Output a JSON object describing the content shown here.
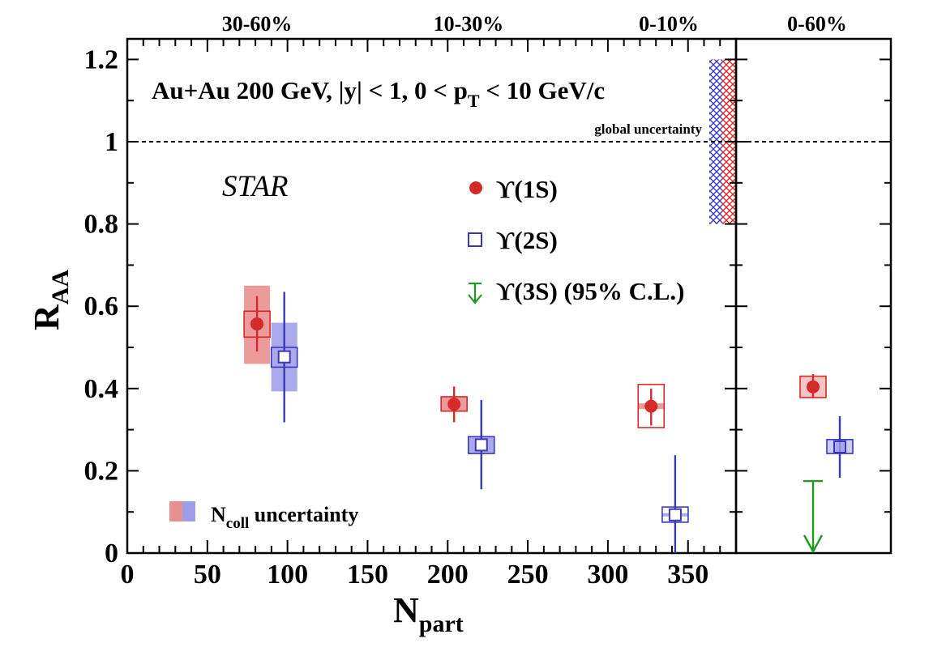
{
  "chart_data": {
    "type": "scatter",
    "title": "Au+Au 200 GeV, |y| < 1, 0 < p_T < 10 GeV/c",
    "title_parts": {
      "main": "Au+Au 200 GeV, |y| < 1, 0 < p",
      "sub": "T",
      "tail": " < 10 GeV/c"
    },
    "experiment_label": "STAR",
    "xlabel": {
      "main": "N",
      "sub": "part"
    },
    "ylabel": {
      "main": "R",
      "sub": "AA"
    },
    "xlim": [
      0,
      380
    ],
    "ylim": [
      0,
      1.25
    ],
    "x_ticks": [
      "0",
      "50",
      "100",
      "150",
      "200",
      "250",
      "300",
      "350"
    ],
    "y_ticks": [
      "0",
      "0.2",
      "0.4",
      "0.6",
      "0.8",
      "1",
      "1.2"
    ],
    "centrality_labels": [
      {
        "label": "30-60%",
        "x": 81
      },
      {
        "label": "10-30%",
        "x": 213
      },
      {
        "label": "0-10%",
        "x": 338
      }
    ],
    "integrated_panel_label": "0-60%",
    "global_uncertainty_label": "global uncertainty",
    "global_uncertainty": {
      "low": 0.8,
      "high": 1.2
    },
    "reference_line": 1,
    "ncoll_label": {
      "main": "N",
      "sub": "coll",
      "tail": " uncertainty"
    },
    "series": [
      {
        "name": "ϒ(1S)",
        "color": "#d42a2a",
        "marker": "filled-circle",
        "points": [
          {
            "x": 81,
            "y": 0.557,
            "stat": [
              0.49,
              0.625
            ],
            "sys": [
              0.525,
              0.588
            ],
            "ncoll": [
              0.46,
              0.65
            ]
          },
          {
            "x": 204,
            "y": 0.362,
            "stat": [
              0.318,
              0.405
            ],
            "sys": [
              0.345,
              0.38
            ],
            "ncoll": [
              0.345,
              0.38
            ]
          },
          {
            "x": 327,
            "y": 0.357,
            "stat": [
              0.31,
              0.4
            ],
            "sys": [
              0.305,
              0.41
            ],
            "ncoll": [
              0.35,
              0.364
            ]
          }
        ],
        "integrated": {
          "y": 0.404,
          "stat": [
            0.378,
            0.435
          ],
          "sys": [
            0.378,
            0.43
          ]
        }
      },
      {
        "name": "ϒ(2S)",
        "color": "#3a3ab8",
        "marker": "open-square",
        "points": [
          {
            "x": 98,
            "y": 0.477,
            "stat": [
              0.318,
              0.635
            ],
            "sys": [
              0.452,
              0.5
            ],
            "ncoll": [
              0.393,
              0.56
            ]
          },
          {
            "x": 221,
            "y": 0.263,
            "stat": [
              0.155,
              0.372
            ],
            "sys": [
              0.242,
              0.283
            ],
            "ncoll": [
              0.242,
              0.283
            ]
          },
          {
            "x": 342,
            "y": 0.093,
            "stat": [
              0.0,
              0.238
            ],
            "sys": [
              0.075,
              0.112
            ],
            "ncoll": [
              0.089,
              0.097
            ]
          }
        ],
        "integrated": {
          "y": 0.258,
          "stat": [
            0.183,
            0.333
          ],
          "sys": [
            0.242,
            0.276
          ]
        }
      },
      {
        "name": "ϒ(3S) (95% C.L.)",
        "color": "#1f9a1f",
        "marker": "upper-limit-arrow",
        "points": [],
        "integrated": {
          "upper_limit": 0.175
        }
      }
    ]
  }
}
